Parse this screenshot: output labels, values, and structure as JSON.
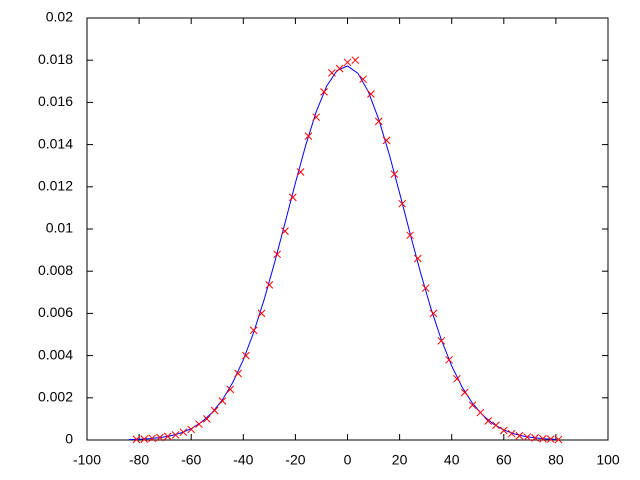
{
  "chart_data": {
    "type": "scatter",
    "xlim": [
      -100,
      100
    ],
    "xticks": [
      -100,
      -80,
      -60,
      -40,
      -20,
      0,
      20,
      40,
      60,
      80,
      100
    ],
    "ylim": [
      0,
      0.02
    ],
    "yticks": [
      0,
      0.002,
      0.004,
      0.006,
      0.008,
      0.01,
      0.012,
      0.014,
      0.016,
      0.018,
      0.02
    ],
    "grid": false,
    "series": [
      {
        "type": "line",
        "color": "#0000ff",
        "x": [
          -84,
          -80,
          -76,
          -72,
          -68,
          -64,
          -60,
          -56,
          -52,
          -48,
          -44,
          -40,
          -36,
          -32,
          -28,
          -24,
          -20,
          -16,
          -12,
          -8,
          -4,
          0,
          4,
          8,
          12,
          16,
          20,
          24,
          28,
          32,
          36,
          40,
          44,
          48,
          52,
          56,
          60,
          64,
          68,
          72,
          76,
          80
        ],
        "values": [
          1.81e-05,
          3.45e-05,
          6.37e-05,
          0.0001137,
          0.000197,
          0.000331,
          0.000537,
          0.000846,
          0.001291,
          0.00191,
          0.002736,
          0.003798,
          0.005106,
          0.006655,
          0.008401,
          0.010276,
          0.012179,
          0.013985,
          0.01556,
          0.016773,
          0.017518,
          0.017726,
          0.017379,
          0.016508,
          0.015195,
          0.01355,
          0.011707,
          0.009801,
          0.007949,
          0.006246,
          0.004757,
          0.003509,
          0.002507,
          0.001737,
          0.001166,
          0.000758,
          0.000477,
          0.000291,
          0.000172,
          9.86e-05,
          5.48e-05,
          2.95e-05
        ]
      },
      {
        "type": "points",
        "color": "#ff0000",
        "x": [
          -81,
          -78,
          -75,
          -72,
          -69,
          -66,
          -63,
          -60,
          -57,
          -54,
          -51,
          -48,
          -45,
          -42,
          -39,
          -36,
          -33,
          -30,
          -27,
          -24,
          -21,
          -18,
          -15,
          -12,
          -9,
          -6,
          -3,
          0,
          3,
          6,
          9,
          12,
          15,
          18,
          21,
          24,
          27,
          30,
          33,
          36,
          39,
          42,
          45,
          48,
          51,
          54,
          57,
          60,
          63,
          66,
          69,
          72,
          75,
          78,
          81
        ],
        "values": [
          3e-05,
          4e-05,
          8e-05,
          0.00012,
          0.00017,
          0.00024,
          0.00037,
          0.0005,
          0.00075,
          0.001,
          0.0014,
          0.00185,
          0.0024,
          0.00315,
          0.004,
          0.0052,
          0.006,
          0.00735,
          0.0088,
          0.0099,
          0.0115,
          0.0127,
          0.0144,
          0.0153,
          0.0165,
          0.0174,
          0.0176,
          0.0179,
          0.018,
          0.0171,
          0.0164,
          0.0151,
          0.0142,
          0.0126,
          0.0112,
          0.0097,
          0.0086,
          0.0072,
          0.006,
          0.0047,
          0.0038,
          0.0029,
          0.00225,
          0.00165,
          0.0013,
          0.0009,
          0.0007,
          0.00045,
          0.0003,
          0.0002,
          0.00014,
          0.0001,
          6e-05,
          4e-05,
          2e-05
        ]
      }
    ]
  }
}
